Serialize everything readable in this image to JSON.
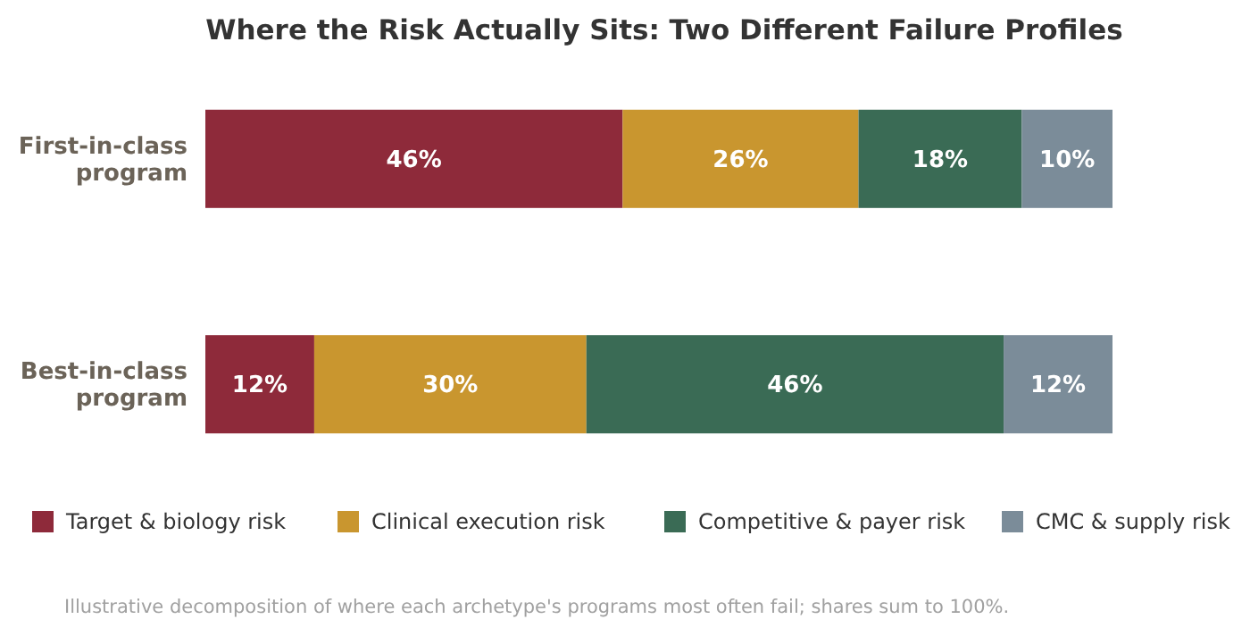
{
  "chart_data": {
    "type": "bar",
    "orientation": "horizontal",
    "stacked": true,
    "title": "Where the Risk Actually Sits: Two Different Failure Profiles",
    "categories": [
      "First-in-class program",
      "Best-in-class program"
    ],
    "series": [
      {
        "name": "Target & biology risk",
        "color": "#8e2a3a",
        "values": [
          46,
          12
        ],
        "value_labels": [
          "46%",
          "12%"
        ]
      },
      {
        "name": "Clinical execution risk",
        "color": "#c9962f",
        "values": [
          26,
          30
        ],
        "value_labels": [
          "26%",
          "30%"
        ]
      },
      {
        "name": "Competitive & payer risk",
        "color": "#3a6b55",
        "values": [
          18,
          46
        ],
        "value_labels": [
          "18%",
          "46%"
        ]
      },
      {
        "name": "CMC & supply risk",
        "color": "#7b8c99",
        "values": [
          10,
          12
        ],
        "value_labels": [
          "10%",
          "12%"
        ]
      }
    ],
    "legend": "bottom",
    "annotations": [
      "Illustrative decomposition of where each archetype's programs most often fail; shares sum to 100%."
    ]
  }
}
